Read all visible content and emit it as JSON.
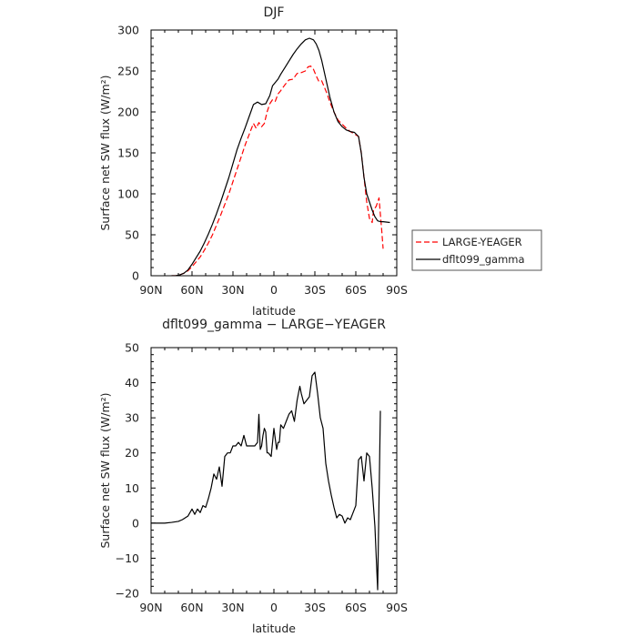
{
  "chart_data": [
    {
      "type": "line",
      "title": "DJF",
      "xlabel": "latitude",
      "ylabel": "Surface net SW flux (W/m²)",
      "x_tick_labels": [
        "90N",
        "60N",
        "30N",
        "0",
        "30S",
        "60S",
        "90S"
      ],
      "x_ticks": [
        90,
        60,
        30,
        0,
        -30,
        -60,
        -90
      ],
      "xlim": [
        90,
        -90
      ],
      "ylim": [
        0,
        300
      ],
      "y_ticks": [
        0,
        50,
        100,
        150,
        200,
        250,
        300
      ],
      "legend": {
        "placement": "right, outside plot"
      },
      "series": [
        {
          "name": "LARGE-YEAGER",
          "color": "#ff0000",
          "dash": "dashed",
          "x": [
            75,
            72,
            69,
            66,
            63,
            60,
            57,
            54,
            51,
            48,
            45,
            42,
            39,
            36,
            33,
            30,
            27,
            24,
            21,
            18,
            15,
            13,
            11,
            9,
            7,
            5,
            3,
            1,
            -1,
            -3,
            -5,
            -8,
            -11,
            -14,
            -17,
            -20,
            -23,
            -25,
            -27,
            -29,
            -31,
            -33,
            -35,
            -37,
            -39,
            -41,
            -44,
            -47,
            -50,
            -53,
            -56,
            -59,
            -62,
            -64,
            -66,
            -68,
            -70,
            -72,
            -73,
            -75,
            -77,
            -79,
            -80
          ],
          "y": [
            0,
            0,
            1,
            3,
            6,
            11,
            17,
            23,
            31,
            40,
            50,
            62,
            74,
            87,
            100,
            115,
            130,
            145,
            160,
            173,
            186,
            180,
            187,
            182,
            186,
            200,
            210,
            215,
            213,
            222,
            226,
            233,
            239,
            240,
            247,
            248,
            250,
            255,
            256,
            252,
            244,
            237,
            238,
            230,
            222,
            212,
            200,
            190,
            185,
            180,
            176,
            173,
            170,
            150,
            120,
            90,
            70,
            65,
            80,
            85,
            95,
            55,
            33
          ]
        },
        {
          "name": "dflt099_gamma",
          "color": "#000000",
          "dash": "solid",
          "x": [
            75,
            72,
            69,
            66,
            63,
            60,
            57,
            54,
            51,
            48,
            45,
            42,
            39,
            36,
            33,
            30,
            27,
            24,
            21,
            18,
            15,
            12,
            9,
            6,
            3,
            1,
            -1,
            -3,
            -5,
            -8,
            -11,
            -14,
            -17,
            -20,
            -23,
            -26,
            -29,
            -31,
            -33,
            -35,
            -37,
            -39,
            -41,
            -44,
            -47,
            -50,
            -53,
            -56,
            -59,
            -62,
            -64,
            -66,
            -68,
            -70,
            -72,
            -74,
            -76,
            -78,
            -80,
            -85
          ],
          "y": [
            0,
            0,
            1,
            3,
            7,
            14,
            22,
            30,
            40,
            51,
            63,
            76,
            90,
            105,
            120,
            137,
            154,
            168,
            181,
            195,
            209,
            212,
            209,
            210,
            220,
            232,
            236,
            240,
            246,
            254,
            262,
            270,
            277,
            283,
            288,
            290,
            288,
            283,
            275,
            263,
            248,
            233,
            218,
            200,
            188,
            182,
            178,
            176,
            175,
            170,
            150,
            120,
            100,
            90,
            80,
            72,
            67,
            66,
            66,
            65
          ]
        }
      ]
    },
    {
      "type": "line",
      "title": "dflt099_gamma − LARGE−YEAGER",
      "xlabel": "latitude",
      "ylabel": "Surface net SW flux (W/m²)",
      "x_tick_labels": [
        "90N",
        "60N",
        "30N",
        "0",
        "30S",
        "60S",
        "90S"
      ],
      "x_ticks": [
        90,
        60,
        30,
        0,
        -30,
        -60,
        -90
      ],
      "xlim": [
        90,
        -90
      ],
      "ylim": [
        -20,
        50
      ],
      "y_ticks": [
        -20,
        -10,
        0,
        10,
        20,
        30,
        40,
        50
      ],
      "series": [
        {
          "color": "#000000",
          "dash": "solid",
          "x": [
            90,
            80,
            75,
            70,
            67,
            63,
            60,
            58,
            56,
            54,
            52,
            50,
            48,
            46,
            44,
            42,
            40,
            38,
            36,
            34,
            32,
            30,
            28,
            26,
            24,
            22,
            20,
            18,
            16,
            14,
            12,
            11,
            10,
            9,
            8,
            7,
            6,
            5,
            4,
            2,
            0,
            -2,
            -3,
            -4,
            -5,
            -7,
            -9,
            -11,
            -13,
            -15,
            -17,
            -19,
            -20,
            -22,
            -24,
            -26,
            -28,
            -30,
            -32,
            -34,
            -36,
            -38,
            -40,
            -42,
            -44,
            -46,
            -48,
            -50,
            -52,
            -54,
            -56,
            -58,
            -60,
            -62,
            -64,
            -66,
            -68,
            -70,
            -72,
            -74,
            -76,
            -78
          ],
          "y": [
            0,
            0,
            0.2,
            0.5,
            1,
            2,
            4,
            2.5,
            4,
            3,
            5,
            4.5,
            7,
            10,
            14,
            12.5,
            16,
            10.5,
            19,
            20,
            20,
            22,
            22,
            23,
            22,
            25,
            22,
            22,
            22,
            22,
            23,
            31,
            21,
            22,
            25,
            27,
            26,
            20,
            20,
            19,
            27,
            21,
            23,
            23,
            28,
            27,
            29,
            31,
            32,
            29,
            35,
            39,
            37,
            34,
            35,
            36,
            42,
            43,
            37,
            30,
            27,
            17,
            12,
            8,
            4.5,
            1.5,
            2.5,
            2,
            0,
            1.5,
            1,
            3,
            5,
            18,
            19,
            12,
            20,
            19,
            10,
            -1,
            -19,
            32
          ]
        }
      ]
    }
  ]
}
